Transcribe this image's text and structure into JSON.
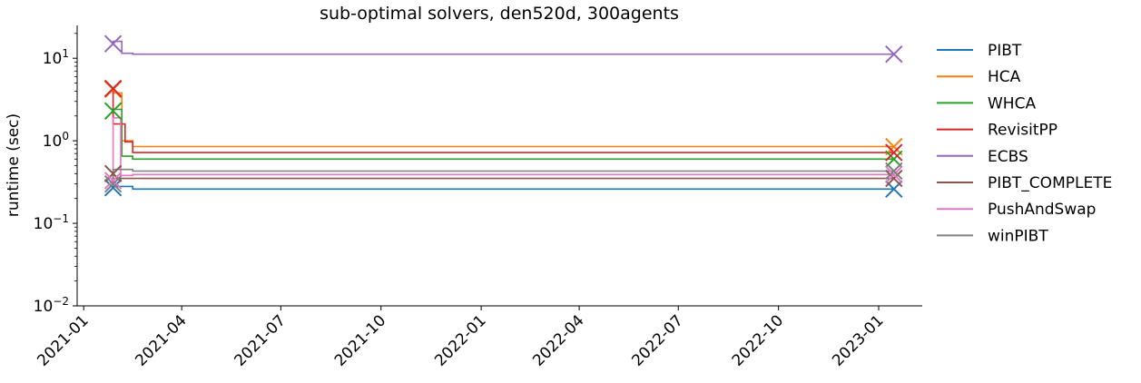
{
  "chart_data": {
    "type": "line",
    "title": "sub-optimal solvers, den520d, 300agents",
    "xlabel": "",
    "ylabel": "runtime (sec)",
    "y_scale": "log",
    "ylim": [
      0.01,
      25
    ],
    "xlim": [
      "2020-12-26",
      "2023-02-10"
    ],
    "grid": false,
    "legend_position": "outside-right",
    "x_ticks": [
      "2021-01",
      "2021-04",
      "2021-07",
      "2021-10",
      "2022-01",
      "2022-04",
      "2022-07",
      "2022-10",
      "2023-01"
    ],
    "y_ticks": [
      {
        "value": 10,
        "base": "10",
        "exp": "1"
      },
      {
        "value": 1,
        "base": "10",
        "exp": "0"
      },
      {
        "value": 0.1,
        "base": "10",
        "exp": "−1"
      },
      {
        "value": 0.01,
        "base": "10",
        "exp": "−2"
      }
    ],
    "series": [
      {
        "name": "PIBT",
        "color": "#1f77b4",
        "points": [
          [
            "2021-01-28",
            0.27
          ],
          [
            "2021-02-15",
            0.28
          ],
          [
            "2023-01-15",
            0.26
          ]
        ]
      },
      {
        "name": "HCA",
        "color": "#ff7f0e",
        "points": [
          [
            "2021-01-28",
            4.2
          ],
          [
            "2021-02-05",
            3.8
          ],
          [
            "2021-02-15",
            1.0
          ],
          [
            "2023-01-15",
            0.85
          ]
        ]
      },
      {
        "name": "WHCA",
        "color": "#2ca02c",
        "points": [
          [
            "2021-01-28",
            2.3
          ],
          [
            "2021-02-05",
            2.4
          ],
          [
            "2021-02-15",
            0.65
          ],
          [
            "2023-01-15",
            0.6
          ]
        ]
      },
      {
        "name": "RevisitPP",
        "color": "#d62728",
        "points": [
          [
            "2021-01-28",
            4.3
          ],
          [
            "2021-02-08",
            1.6
          ],
          [
            "2021-02-15",
            0.97
          ],
          [
            "2023-01-15",
            0.72
          ]
        ]
      },
      {
        "name": "ECBS",
        "color": "#9467bd",
        "points": [
          [
            "2021-01-28",
            15
          ],
          [
            "2021-02-05",
            16
          ],
          [
            "2021-02-15",
            11.5
          ],
          [
            "2023-01-15",
            11.2
          ]
        ]
      },
      {
        "name": "PIBT_COMPLETE",
        "color": "#8c564b",
        "points": [
          [
            "2021-01-28",
            0.4
          ],
          [
            "2021-02-15",
            0.35
          ],
          [
            "2023-01-15",
            0.35
          ]
        ]
      },
      {
        "name": "PushAndSwap",
        "color": "#e377c2",
        "points": [
          [
            "2021-01-28",
            0.33
          ],
          [
            "2021-02-04",
            1.9
          ],
          [
            "2021-02-15",
            0.38
          ],
          [
            "2023-01-15",
            0.39
          ]
        ]
      },
      {
        "name": "winPIBT",
        "color": "#7f7f7f",
        "points": [
          [
            "2021-01-28",
            0.3
          ],
          [
            "2021-02-15",
            0.45
          ],
          [
            "2023-01-15",
            0.43
          ]
        ]
      }
    ]
  }
}
